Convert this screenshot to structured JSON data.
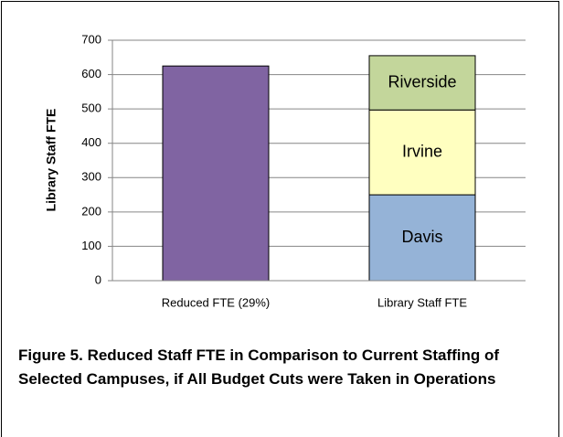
{
  "chart_data": {
    "type": "stacked_bar",
    "title": "Figure 5. Reduced Staff FTE in Comparison to Current Staffing of Selected Campuses, if All Budget Cuts were Taken in Operations",
    "y_label": "Library Staff FTE",
    "categories": [
      "Reduced FTE (29%)",
      "Library Staff FTE"
    ],
    "series": [
      {
        "color": "#8064a2",
        "values": [
          625,
          null
        ]
      },
      {
        "name": "Davis",
        "color": "#95b3d7",
        "values": [
          null,
          250
        ]
      },
      {
        "name": "Irvine",
        "color": "#ffffc0",
        "values": [
          null,
          247
        ]
      },
      {
        "name": "Riverside",
        "color": "#c3d69b",
        "values": [
          null,
          158
        ]
      }
    ],
    "ylim": [
      0,
      700
    ],
    "yticks": [
      0,
      100,
      200,
      300,
      400,
      500,
      600,
      700
    ],
    "grid": true
  }
}
